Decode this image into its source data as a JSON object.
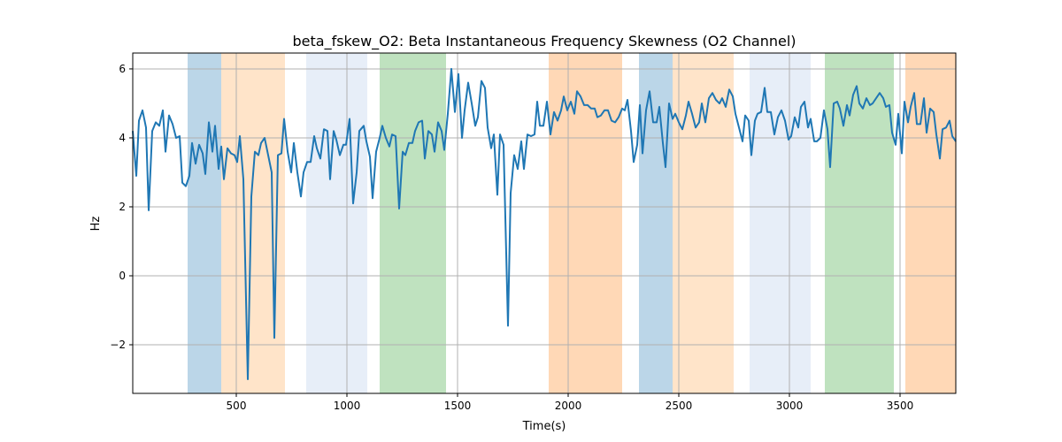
{
  "chart_data": {
    "type": "line",
    "title": "beta_fskew_O2: Beta Instantaneous Frequency Skewness (O2 Channel)",
    "xlabel": "Time(s)",
    "ylabel": "Hz",
    "xlim": [
      32,
      3752
    ],
    "ylim": [
      -3.41,
      6.46
    ],
    "grid": true,
    "xticks": [
      500,
      1000,
      1500,
      2000,
      2500,
      3000,
      3500
    ],
    "xtick_labels": [
      "500",
      "1000",
      "1500",
      "2000",
      "2500",
      "3000",
      "3500"
    ],
    "yticks": [
      -2,
      0,
      2,
      4,
      6
    ],
    "ytick_labels": [
      "−2",
      "0",
      "2",
      "4",
      "6"
    ],
    "line_color": "#1f77b4",
    "spans": [
      {
        "start": 280,
        "end": 432,
        "color": "#1f77b4",
        "opacity": 0.3
      },
      {
        "start": 432,
        "end": 720,
        "color": "#ffbb78",
        "opacity": 0.4
      },
      {
        "start": 816,
        "end": 1092,
        "color": "#aec7e8",
        "opacity": 0.3
      },
      {
        "start": 1148,
        "end": 1448,
        "color": "#2ca02c",
        "opacity": 0.3
      },
      {
        "start": 1912,
        "end": 2244,
        "color": "#ff7f0e",
        "opacity": 0.3
      },
      {
        "start": 2320,
        "end": 2472,
        "color": "#1f77b4",
        "opacity": 0.3
      },
      {
        "start": 2472,
        "end": 2748,
        "color": "#ffbb78",
        "opacity": 0.4
      },
      {
        "start": 2820,
        "end": 3096,
        "color": "#aec7e8",
        "opacity": 0.3
      },
      {
        "start": 3160,
        "end": 3472,
        "color": "#2ca02c",
        "opacity": 0.3
      },
      {
        "start": 3524,
        "end": 3752,
        "color": "#ff7f0e",
        "opacity": 0.3
      }
    ],
    "x": [
      32,
      48,
      60,
      76,
      92,
      104,
      120,
      136,
      152,
      168,
      180,
      196,
      212,
      228,
      244,
      256,
      272,
      288,
      300,
      316,
      332,
      348,
      360,
      376,
      392,
      404,
      420,
      432,
      444,
      460,
      476,
      492,
      504,
      516,
      532,
      552,
      568,
      584,
      600,
      612,
      628,
      644,
      660,
      672,
      688,
      704,
      716,
      732,
      748,
      760,
      776,
      792,
      804,
      820,
      836,
      852,
      864,
      880,
      896,
      912,
      924,
      940,
      952,
      968,
      984,
      996,
      1012,
      1028,
      1044,
      1056,
      1076,
      1088,
      1104,
      1116,
      1132,
      1148,
      1160,
      1176,
      1192,
      1204,
      1220,
      1236,
      1252,
      1264,
      1280,
      1296,
      1308,
      1324,
      1340,
      1352,
      1368,
      1384,
      1396,
      1412,
      1428,
      1440,
      1456,
      1472,
      1488,
      1504,
      1520,
      1532,
      1548,
      1564,
      1580,
      1592,
      1608,
      1624,
      1636,
      1652,
      1664,
      1680,
      1692,
      1708,
      1728,
      1740,
      1756,
      1772,
      1788,
      1800,
      1816,
      1832,
      1848,
      1860,
      1872,
      1888,
      1904,
      1920,
      1936,
      1952,
      1968,
      1980,
      1996,
      2012,
      2028,
      2040,
      2056,
      2072,
      2088,
      2104,
      2120,
      2132,
      2148,
      2164,
      2180,
      2196,
      2212,
      2228,
      2244,
      2256,
      2268,
      2284,
      2296,
      2312,
      2324,
      2336,
      2352,
      2368,
      2384,
      2400,
      2412,
      2428,
      2440,
      2456,
      2472,
      2484,
      2500,
      2516,
      2532,
      2544,
      2560,
      2576,
      2592,
      2604,
      2620,
      2636,
      2652,
      2668,
      2684,
      2696,
      2712,
      2728,
      2744,
      2756,
      2772,
      2788,
      2800,
      2816,
      2828,
      2844,
      2856,
      2872,
      2888,
      2900,
      2916,
      2932,
      2948,
      2964,
      2980,
      2996,
      3008,
      3024,
      3040,
      3052,
      3068,
      3084,
      3096,
      3112,
      3124,
      3140,
      3156,
      3172,
      3184,
      3200,
      3216,
      3228,
      3244,
      3260,
      3272,
      3288,
      3304,
      3316,
      3332,
      3348,
      3364,
      3376,
      3392,
      3408,
      3424,
      3436,
      3452,
      3464,
      3480,
      3492,
      3508,
      3520,
      3536,
      3548,
      3564,
      3576,
      3592,
      3608,
      3620,
      3636,
      3652,
      3664,
      3680,
      3692,
      3708,
      3724,
      3736,
      3752
    ],
    "y": [
      4.2,
      2.9,
      4.5,
      4.8,
      4.3,
      1.9,
      4.2,
      4.45,
      4.35,
      4.8,
      3.6,
      4.65,
      4.4,
      4.0,
      4.05,
      2.7,
      2.6,
      2.9,
      3.85,
      3.25,
      3.8,
      3.55,
      2.95,
      4.45,
      3.6,
      4.35,
      3.1,
      3.75,
      2.8,
      3.7,
      3.55,
      3.5,
      3.3,
      4.05,
      2.8,
      -3.0,
      2.3,
      3.6,
      3.5,
      3.85,
      4.0,
      3.5,
      3.0,
      -1.8,
      3.5,
      3.55,
      4.55,
      3.6,
      3.0,
      3.85,
      3.0,
      2.3,
      3.0,
      3.3,
      3.3,
      4.05,
      3.7,
      3.4,
      4.25,
      4.2,
      2.8,
      4.2,
      3.95,
      3.5,
      3.8,
      3.8,
      4.55,
      2.1,
      3.0,
      4.2,
      4.35,
      3.9,
      3.45,
      2.25,
      3.6,
      4.0,
      4.35,
      4.0,
      3.75,
      4.1,
      4.05,
      1.95,
      3.6,
      3.5,
      3.85,
      3.85,
      4.2,
      4.45,
      4.5,
      3.4,
      4.2,
      4.1,
      3.6,
      4.45,
      4.2,
      3.65,
      4.7,
      6.0,
      4.75,
      5.85,
      4.0,
      4.8,
      5.6,
      5.0,
      4.35,
      4.6,
      5.65,
      5.45,
      4.3,
      3.7,
      4.1,
      2.35,
      4.1,
      3.8,
      -1.45,
      2.4,
      3.5,
      3.1,
      3.9,
      3.1,
      4.1,
      4.05,
      4.1,
      5.05,
      4.35,
      4.35,
      5.05,
      4.1,
      4.75,
      4.5,
      4.8,
      5.2,
      4.8,
      5.05,
      4.7,
      5.35,
      5.2,
      4.95,
      4.95,
      4.85,
      4.85,
      4.6,
      4.65,
      4.8,
      4.8,
      4.5,
      4.45,
      4.6,
      4.85,
      4.8,
      5.1,
      4.2,
      3.3,
      3.8,
      4.95,
      3.55,
      4.8,
      5.35,
      4.45,
      4.45,
      4.9,
      3.85,
      3.15,
      5.0,
      4.55,
      4.7,
      4.45,
      4.25,
      4.65,
      5.05,
      4.7,
      4.3,
      4.45,
      5.0,
      4.45,
      5.15,
      5.3,
      5.1,
      5.0,
      5.15,
      4.9,
      5.4,
      5.2,
      4.7,
      4.3,
      3.9,
      4.65,
      4.5,
      3.5,
      4.5,
      4.7,
      4.75,
      5.45,
      4.75,
      4.75,
      4.1,
      4.6,
      4.8,
      4.5,
      3.95,
      4.05,
      4.6,
      4.3,
      4.9,
      5.05,
      4.3,
      4.55,
      3.9,
      3.9,
      4.0,
      4.8,
      4.25,
      3.15,
      5.0,
      5.05,
      4.85,
      4.35,
      4.95,
      4.65,
      5.25,
      5.5,
      5.0,
      4.85,
      5.15,
      4.95,
      5.0,
      5.15,
      5.3,
      5.15,
      4.9,
      4.95,
      4.15,
      3.8,
      4.7,
      3.55,
      5.05,
      4.45,
      4.9,
      5.3,
      4.4,
      4.4,
      5.15,
      4.15,
      4.85,
      4.75,
      4.1,
      3.4,
      4.25,
      4.3,
      4.5,
      4.05,
      3.9
    ]
  }
}
